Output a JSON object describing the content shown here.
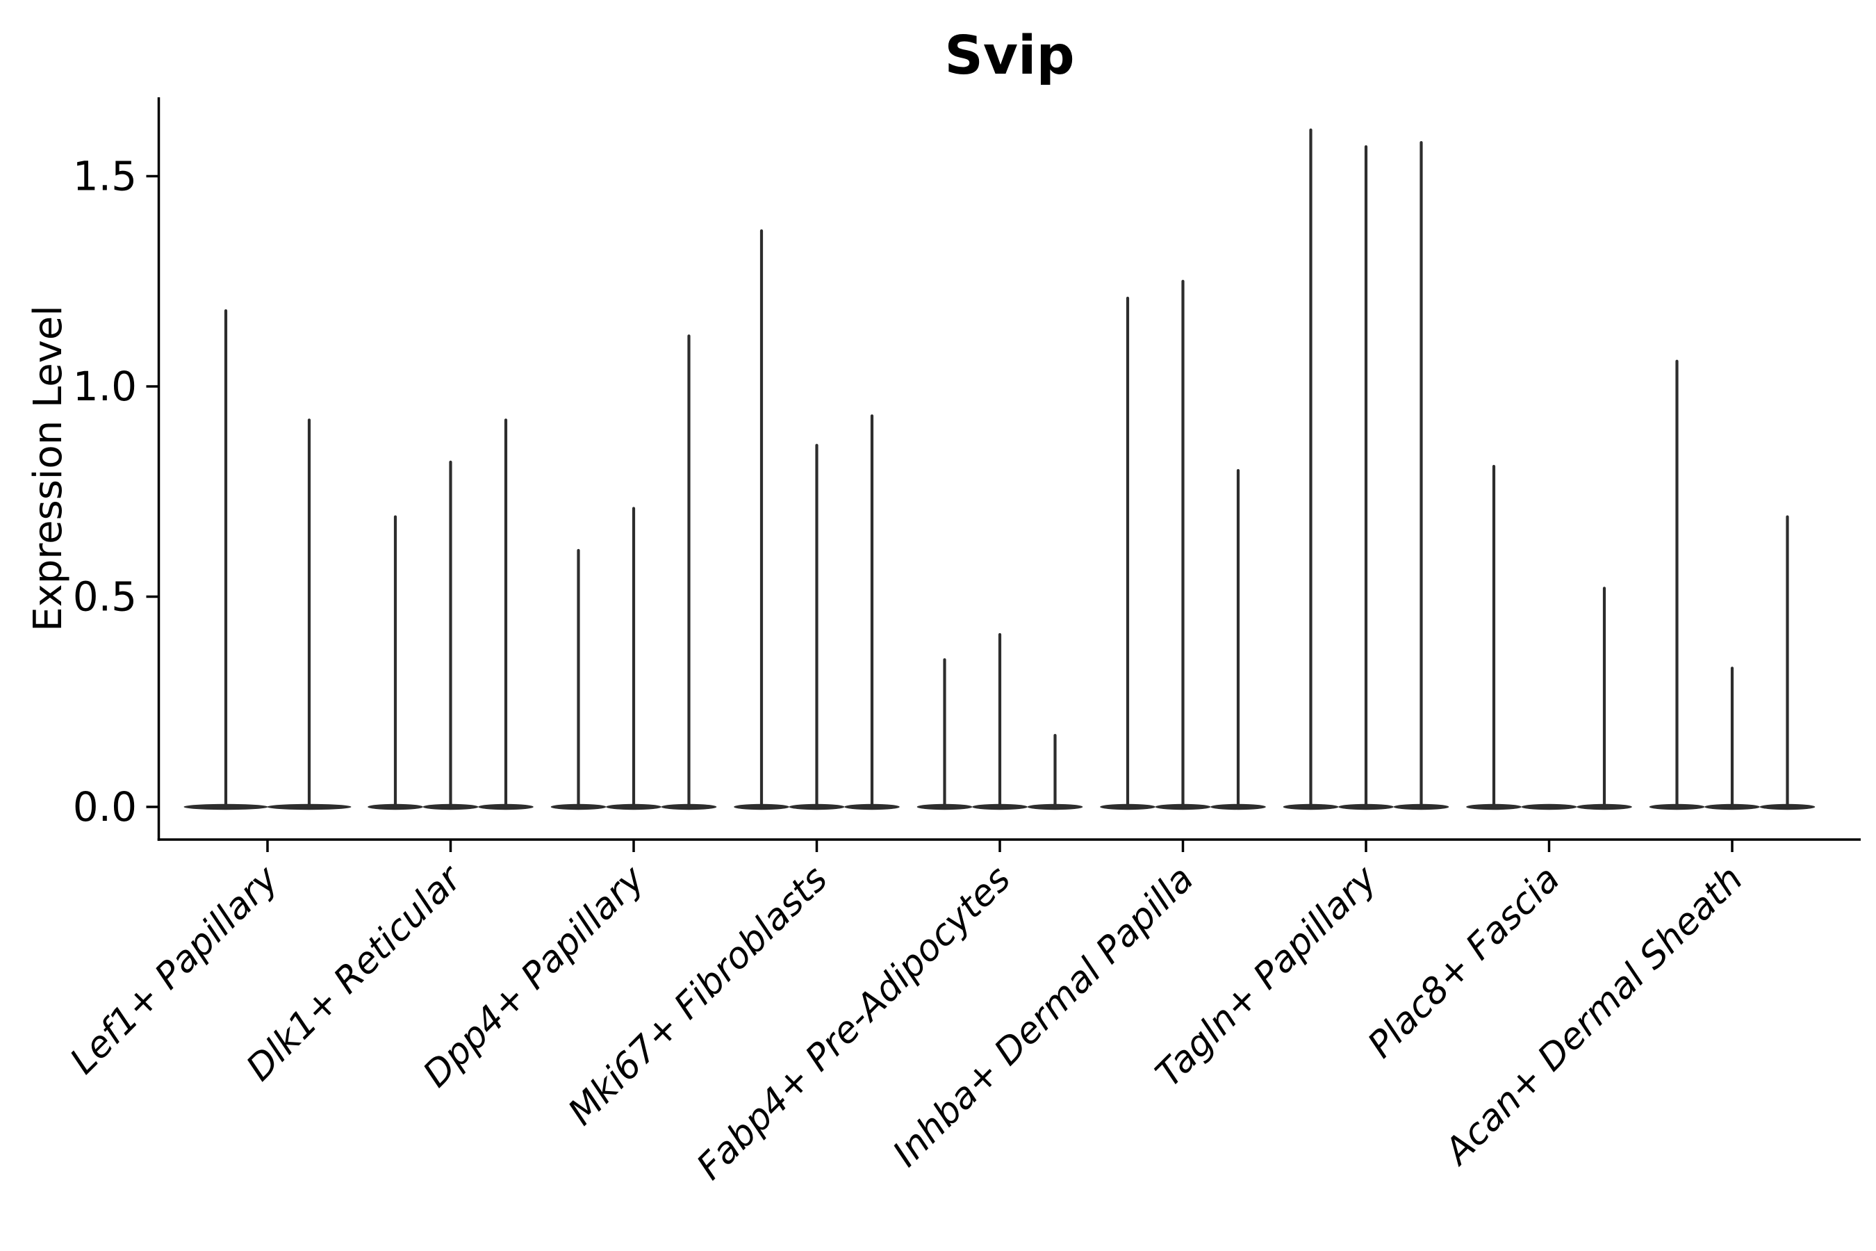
{
  "page": {
    "background_color": "#ffffff"
  },
  "chart_data": {
    "type": "violin",
    "subtype": "stick-violin-expression-plot",
    "title": "Svip",
    "xlabel": "",
    "ylabel": "Expression Level",
    "ylim": [
      -0.08,
      1.69
    ],
    "grid": false,
    "legend_position": "none",
    "x_tick_rotation_deg": 45,
    "colors": {
      "violin": "#2d2d2d",
      "axis": "#000000",
      "text": "#000000",
      "background": "#ffffff"
    },
    "yticks": [
      {
        "value": 0.0,
        "label": "0.0"
      },
      {
        "value": 0.5,
        "label": "0.5"
      },
      {
        "value": 1.0,
        "label": "1.0"
      },
      {
        "value": 1.5,
        "label": "1.5"
      }
    ],
    "categories": [
      "Lef1+ Papillary",
      "Dlk1+ Reticular",
      "Dpp4+ Papillary",
      "Mki67+ Fibroblasts",
      "Fabp4+ Pre-Adipocytes",
      "Inhba+ Dermal Papilla",
      "Tagln+ Papillary",
      "Plac8+ Fascia",
      "Acan+ Dermal Sheath"
    ],
    "groups": [
      {
        "category": "Lef1+ Papillary",
        "violin_max_values": [
          1.18,
          0.92
        ]
      },
      {
        "category": "Dlk1+ Reticular",
        "violin_max_values": [
          0.69,
          0.82,
          0.92
        ]
      },
      {
        "category": "Dpp4+ Papillary",
        "violin_max_values": [
          0.61,
          0.71,
          1.12
        ]
      },
      {
        "category": "Mki67+ Fibroblasts",
        "violin_max_values": [
          1.37,
          0.86,
          0.93
        ]
      },
      {
        "category": "Fabp4+ Pre-Adipocytes",
        "violin_max_values": [
          0.35,
          0.41,
          0.17
        ]
      },
      {
        "category": "Inhba+ Dermal Papilla",
        "violin_max_values": [
          1.21,
          1.25,
          0.8
        ]
      },
      {
        "category": "Tagln+ Papillary",
        "violin_max_values": [
          1.61,
          1.57,
          1.58
        ]
      },
      {
        "category": "Plac8+ Fascia",
        "violin_max_values": [
          0.81,
          0.0,
          0.52
        ]
      },
      {
        "category": "Acan+ Dermal Sheath",
        "violin_max_values": [
          1.06,
          0.33,
          0.69
        ]
      }
    ]
  }
}
